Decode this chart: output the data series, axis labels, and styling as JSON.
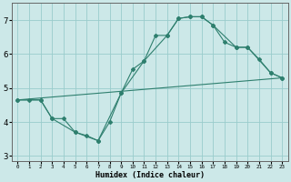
{
  "xlabel": "Humidex (Indice chaleur)",
  "bg_color": "#cce8e8",
  "grid_color": "#99cccc",
  "line_color": "#2e7f6e",
  "xlim": [
    -0.5,
    23.5
  ],
  "ylim": [
    2.85,
    7.5
  ],
  "xticks": [
    0,
    1,
    2,
    3,
    4,
    5,
    6,
    7,
    8,
    9,
    10,
    11,
    12,
    13,
    14,
    15,
    16,
    17,
    18,
    19,
    20,
    21,
    22,
    23
  ],
  "yticks": [
    3,
    4,
    5,
    6,
    7
  ],
  "series": {
    "line_jagged_x": [
      0,
      1,
      2,
      3,
      4,
      5,
      6,
      7,
      8,
      9,
      10,
      11,
      12,
      13,
      14,
      15,
      16,
      17,
      18,
      19,
      20,
      21,
      22,
      23
    ],
    "line_jagged_y": [
      4.65,
      4.65,
      4.65,
      4.1,
      4.1,
      3.7,
      3.6,
      3.45,
      4.0,
      4.85,
      5.55,
      5.8,
      6.55,
      6.55,
      7.05,
      7.1,
      7.1,
      6.85,
      6.35,
      6.2,
      6.2,
      5.85,
      5.45,
      5.3
    ],
    "line_smooth_x": [
      0,
      2,
      3,
      5,
      7,
      9,
      11,
      13,
      14,
      15,
      16,
      17,
      19,
      20,
      22,
      23
    ],
    "line_smooth_y": [
      4.65,
      4.65,
      4.1,
      3.7,
      3.45,
      4.85,
      5.8,
      6.55,
      7.05,
      7.1,
      7.1,
      6.85,
      6.2,
      6.2,
      5.45,
      5.3
    ],
    "line_trend_x": [
      0,
      23
    ],
    "line_trend_y": [
      4.65,
      5.3
    ]
  }
}
